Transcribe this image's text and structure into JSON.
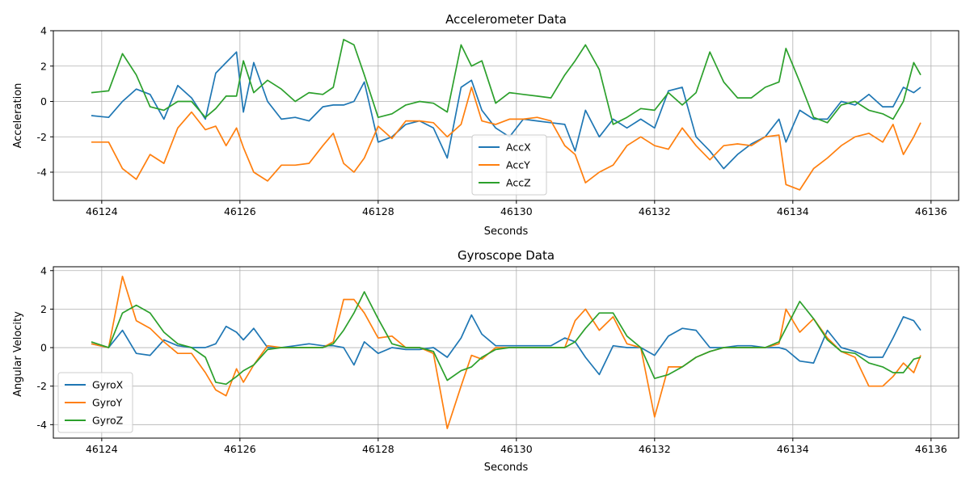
{
  "chart_data": [
    {
      "type": "line",
      "title": "Accelerometer Data",
      "xlabel": "Seconds",
      "ylabel": "Acceleration",
      "xlim": [
        46123.3,
        46136.4
      ],
      "ylim": [
        -5.6,
        4.0
      ],
      "xticks": [
        46124,
        46126,
        46128,
        46130,
        46132,
        46134,
        46136
      ],
      "yticks": [
        -4,
        -2,
        0,
        2,
        4
      ],
      "grid": true,
      "legend_position": "lower-center",
      "x": [
        46123.85,
        46124.1,
        46124.3,
        46124.5,
        46124.7,
        46124.9,
        46125.1,
        46125.3,
        46125.5,
        46125.65,
        46125.8,
        46125.95,
        46126.05,
        46126.2,
        46126.4,
        46126.6,
        46126.8,
        46127.0,
        46127.2,
        46127.35,
        46127.5,
        46127.65,
        46127.8,
        46128.0,
        46128.2,
        46128.4,
        46128.6,
        46128.8,
        46129.0,
        46129.2,
        46129.35,
        46129.5,
        46129.7,
        46129.9,
        46130.1,
        46130.3,
        46130.5,
        46130.7,
        46130.85,
        46131.0,
        46131.2,
        46131.4,
        46131.6,
        46131.8,
        46132.0,
        46132.2,
        46132.4,
        46132.6,
        46132.8,
        46133.0,
        46133.2,
        46133.4,
        46133.6,
        46133.8,
        46133.9,
        46134.1,
        46134.3,
        46134.5,
        46134.7,
        46134.9,
        46135.1,
        46135.3,
        46135.45,
        46135.6,
        46135.75,
        46135.85
      ],
      "series": [
        {
          "name": "AccX",
          "color": "#1f77b4",
          "values": [
            -0.8,
            -0.9,
            0.0,
            0.7,
            0.4,
            -1.0,
            0.9,
            0.2,
            -1.0,
            1.6,
            2.2,
            2.8,
            -0.6,
            2.2,
            0.0,
            -1.0,
            -0.9,
            -1.1,
            -0.3,
            -0.2,
            -0.2,
            0.0,
            1.1,
            -2.3,
            -2.0,
            -1.3,
            -1.1,
            -1.5,
            -3.2,
            0.8,
            1.2,
            -0.5,
            -1.5,
            -2.0,
            -1.0,
            -1.1,
            -1.2,
            -1.3,
            -2.8,
            -0.5,
            -2.0,
            -1.0,
            -1.5,
            -1.0,
            -1.5,
            0.6,
            0.8,
            -2.0,
            -2.8,
            -3.8,
            -3.0,
            -2.4,
            -2.0,
            -1.0,
            -2.3,
            -0.5,
            -1.0,
            -1.0,
            0.0,
            -0.2,
            0.4,
            -0.3,
            -0.3,
            0.8,
            0.5,
            0.8
          ]
        },
        {
          "name": "AccY",
          "color": "#ff7f0e",
          "values": [
            -2.3,
            -2.3,
            -3.8,
            -4.4,
            -3.0,
            -3.5,
            -1.5,
            -0.6,
            -1.6,
            -1.4,
            -2.5,
            -1.5,
            -2.6,
            -4.0,
            -4.5,
            -3.6,
            -3.6,
            -3.5,
            -2.5,
            -1.8,
            -3.5,
            -4.0,
            -3.2,
            -1.4,
            -2.1,
            -1.1,
            -1.1,
            -1.2,
            -2.0,
            -1.3,
            0.8,
            -1.1,
            -1.3,
            -1.0,
            -1.0,
            -0.9,
            -1.1,
            -2.5,
            -3.0,
            -4.6,
            -4.0,
            -3.6,
            -2.5,
            -2.0,
            -2.5,
            -2.7,
            -1.5,
            -2.5,
            -3.3,
            -2.5,
            -2.4,
            -2.5,
            -2.0,
            -1.9,
            -4.7,
            -5.0,
            -3.8,
            -3.2,
            -2.5,
            -2.0,
            -1.8,
            -2.3,
            -1.3,
            -3.0,
            -2.0,
            -1.2
          ]
        },
        {
          "name": "AccZ",
          "color": "#2ca02c",
          "values": [
            0.5,
            0.6,
            2.7,
            1.5,
            -0.3,
            -0.5,
            0.0,
            0.0,
            -0.9,
            -0.4,
            0.3,
            0.3,
            2.3,
            0.5,
            1.2,
            0.7,
            0.0,
            0.5,
            0.4,
            0.8,
            3.5,
            3.2,
            1.5,
            -0.9,
            -0.7,
            -0.2,
            0.0,
            -0.1,
            -0.6,
            3.2,
            2.0,
            2.3,
            -0.1,
            0.5,
            0.4,
            0.3,
            0.2,
            1.5,
            2.3,
            3.2,
            1.8,
            -1.3,
            -0.9,
            -0.4,
            -0.5,
            0.5,
            -0.2,
            0.5,
            2.8,
            1.1,
            0.2,
            0.2,
            0.8,
            1.1,
            3.0,
            1.1,
            -0.9,
            -1.2,
            -0.2,
            0.0,
            -0.5,
            -0.7,
            -1.0,
            0.0,
            2.2,
            1.5
          ]
        }
      ]
    },
    {
      "type": "line",
      "title": "Gyroscope Data",
      "xlabel": "Seconds",
      "ylabel": "Angular Velocity",
      "xlim": [
        46123.3,
        46136.4
      ],
      "ylim": [
        -4.7,
        4.2
      ],
      "xticks": [
        46124,
        46126,
        46128,
        46130,
        46132,
        46134,
        46136
      ],
      "yticks": [
        -4,
        -2,
        0,
        2,
        4
      ],
      "grid": true,
      "legend_position": "lower-left",
      "x": [
        46123.85,
        46124.1,
        46124.3,
        46124.5,
        46124.7,
        46124.9,
        46125.1,
        46125.3,
        46125.5,
        46125.65,
        46125.8,
        46125.95,
        46126.05,
        46126.2,
        46126.4,
        46126.6,
        46126.8,
        46127.0,
        46127.2,
        46127.35,
        46127.5,
        46127.65,
        46127.8,
        46128.0,
        46128.2,
        46128.4,
        46128.6,
        46128.8,
        46129.0,
        46129.2,
        46129.35,
        46129.5,
        46129.7,
        46129.9,
        46130.1,
        46130.3,
        46130.5,
        46130.7,
        46130.85,
        46131.0,
        46131.2,
        46131.4,
        46131.6,
        46131.8,
        46132.0,
        46132.2,
        46132.4,
        46132.6,
        46132.8,
        46133.0,
        46133.2,
        46133.4,
        46133.6,
        46133.8,
        46133.9,
        46134.1,
        46134.3,
        46134.5,
        46134.7,
        46134.9,
        46135.1,
        46135.3,
        46135.45,
        46135.6,
        46135.75,
        46135.85
      ],
      "series": [
        {
          "name": "GyroX",
          "color": "#1f77b4",
          "values": [
            0.2,
            0.0,
            0.9,
            -0.3,
            -0.4,
            0.4,
            0.1,
            0.0,
            0.0,
            0.2,
            1.1,
            0.8,
            0.4,
            1.0,
            0.0,
            0.0,
            0.1,
            0.2,
            0.1,
            0.1,
            0.0,
            -0.9,
            0.3,
            -0.3,
            0.0,
            -0.1,
            -0.1,
            0.0,
            -0.5,
            0.5,
            1.7,
            0.7,
            0.1,
            0.1,
            0.1,
            0.1,
            0.1,
            0.5,
            0.3,
            -0.5,
            -1.4,
            0.1,
            0.0,
            0.0,
            -0.4,
            0.6,
            1.0,
            0.9,
            0.0,
            0.0,
            0.1,
            0.1,
            0.0,
            0.0,
            -0.1,
            -0.7,
            -0.8,
            0.9,
            0.0,
            -0.2,
            -0.5,
            -0.5,
            0.5,
            1.6,
            1.4,
            0.9
          ]
        },
        {
          "name": "GyroY",
          "color": "#ff7f0e",
          "values": [
            0.2,
            0.0,
            3.7,
            1.4,
            1.0,
            0.3,
            -0.3,
            -0.3,
            -1.3,
            -2.2,
            -2.5,
            -1.1,
            -1.8,
            -0.9,
            0.1,
            0.0,
            0.0,
            0.0,
            0.0,
            0.3,
            2.5,
            2.5,
            1.8,
            0.5,
            0.6,
            0.0,
            0.0,
            -0.3,
            -4.2,
            -2.0,
            -0.4,
            -0.6,
            0.0,
            0.0,
            0.0,
            0.0,
            0.0,
            0.0,
            1.4,
            2.0,
            0.9,
            1.6,
            0.2,
            0.0,
            -3.6,
            -1.0,
            -1.0,
            -0.5,
            -0.2,
            0.0,
            0.0,
            0.0,
            0.0,
            0.2,
            2.0,
            0.8,
            1.5,
            0.5,
            -0.2,
            -0.5,
            -2.0,
            -2.0,
            -1.5,
            -0.8,
            -1.3,
            -0.4
          ]
        },
        {
          "name": "GyroZ",
          "color": "#2ca02c",
          "values": [
            0.3,
            0.0,
            1.8,
            2.2,
            1.8,
            0.8,
            0.2,
            0.0,
            -0.5,
            -1.8,
            -1.9,
            -1.5,
            -1.2,
            -0.9,
            -0.1,
            0.0,
            0.0,
            0.0,
            0.0,
            0.2,
            0.9,
            1.8,
            2.9,
            1.5,
            0.2,
            0.0,
            0.0,
            -0.2,
            -1.7,
            -1.2,
            -1.0,
            -0.5,
            -0.1,
            0.0,
            0.0,
            0.0,
            0.0,
            0.0,
            0.3,
            1.0,
            1.8,
            1.8,
            0.6,
            0.0,
            -1.6,
            -1.4,
            -1.0,
            -0.5,
            -0.2,
            0.0,
            0.0,
            0.0,
            0.0,
            0.3,
            1.0,
            2.4,
            1.5,
            0.4,
            -0.2,
            -0.3,
            -0.8,
            -1.0,
            -1.3,
            -1.3,
            -0.6,
            -0.5
          ]
        }
      ]
    }
  ]
}
